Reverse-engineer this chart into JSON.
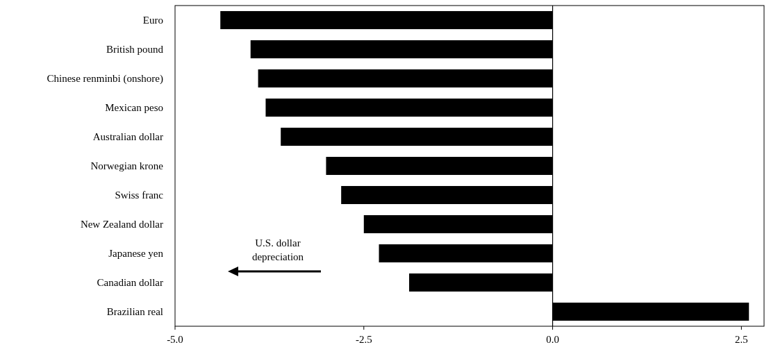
{
  "chart_data": {
    "type": "bar",
    "orientation": "horizontal",
    "categories": [
      "Euro",
      "British pound",
      "Chinese renminbi (onshore)",
      "Mexican peso",
      "Australian dollar",
      "Norwegian krone",
      "Swiss franc",
      "New Zealand dollar",
      "Japanese yen",
      "Canadian dollar",
      "Brazilian real"
    ],
    "values": [
      -4.4,
      -4.0,
      -3.9,
      -3.8,
      -3.6,
      -3.0,
      -2.8,
      -2.5,
      -2.3,
      -1.9,
      2.6
    ],
    "color": "#000000",
    "xlim": [
      -5,
      2.8
    ],
    "xticks": [
      {
        "value": -5,
        "label": "-5.0"
      },
      {
        "value": -2.5,
        "label": "-2.5"
      },
      {
        "value": 0,
        "label": "0.0"
      },
      {
        "value": 2.5,
        "label": "2.5"
      }
    ],
    "ref_lines": [
      {
        "axis": "x",
        "value": 0,
        "color": "#000000"
      }
    ],
    "annotations": [
      "U.S. dollar\ndepreciation"
    ]
  }
}
